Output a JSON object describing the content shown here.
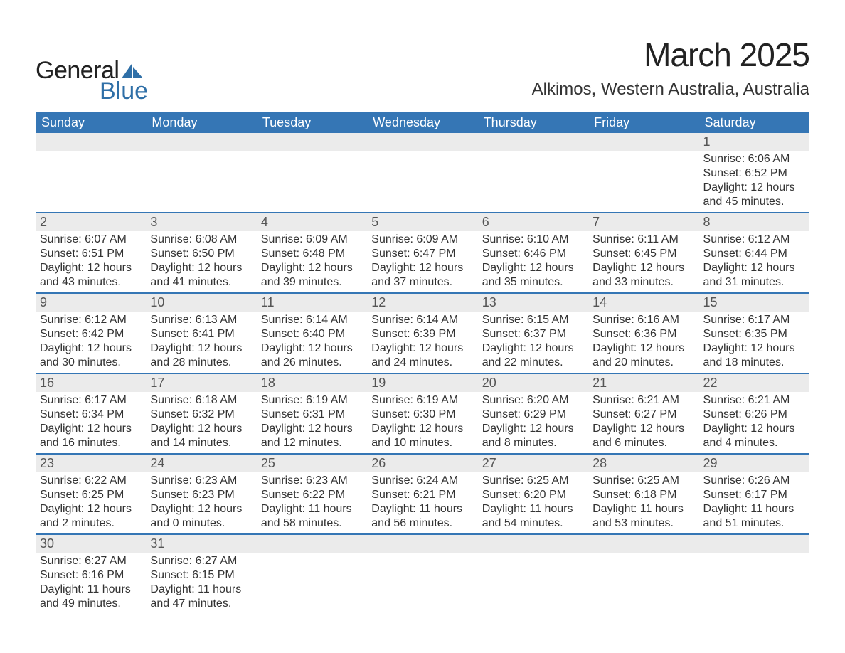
{
  "logo": {
    "word1": "General",
    "word2": "Blue",
    "sail_color": "#2f6fa7",
    "text1_color": "#222222",
    "text2_color": "#2f6fa7"
  },
  "header": {
    "month_title": "March 2025",
    "location": "Alkimos, Western Australia, Australia"
  },
  "colors": {
    "header_bg": "#3576b5",
    "header_text": "#ffffff",
    "daynum_bg": "#ebebeb",
    "row_divider": "#3576b5",
    "body_text": "#333333"
  },
  "typography": {
    "month_title_fontsize": 46,
    "location_fontsize": 24,
    "weekday_fontsize": 18,
    "daynum_fontsize": 18,
    "body_fontsize": 16
  },
  "weekdays": [
    "Sunday",
    "Monday",
    "Tuesday",
    "Wednesday",
    "Thursday",
    "Friday",
    "Saturday"
  ],
  "weeks": [
    [
      null,
      null,
      null,
      null,
      null,
      null,
      {
        "day": "1",
        "sunrise": "Sunrise: 6:06 AM",
        "sunset": "Sunset: 6:52 PM",
        "daylight": "Daylight: 12 hours and 45 minutes."
      }
    ],
    [
      {
        "day": "2",
        "sunrise": "Sunrise: 6:07 AM",
        "sunset": "Sunset: 6:51 PM",
        "daylight": "Daylight: 12 hours and 43 minutes."
      },
      {
        "day": "3",
        "sunrise": "Sunrise: 6:08 AM",
        "sunset": "Sunset: 6:50 PM",
        "daylight": "Daylight: 12 hours and 41 minutes."
      },
      {
        "day": "4",
        "sunrise": "Sunrise: 6:09 AM",
        "sunset": "Sunset: 6:48 PM",
        "daylight": "Daylight: 12 hours and 39 minutes."
      },
      {
        "day": "5",
        "sunrise": "Sunrise: 6:09 AM",
        "sunset": "Sunset: 6:47 PM",
        "daylight": "Daylight: 12 hours and 37 minutes."
      },
      {
        "day": "6",
        "sunrise": "Sunrise: 6:10 AM",
        "sunset": "Sunset: 6:46 PM",
        "daylight": "Daylight: 12 hours and 35 minutes."
      },
      {
        "day": "7",
        "sunrise": "Sunrise: 6:11 AM",
        "sunset": "Sunset: 6:45 PM",
        "daylight": "Daylight: 12 hours and 33 minutes."
      },
      {
        "day": "8",
        "sunrise": "Sunrise: 6:12 AM",
        "sunset": "Sunset: 6:44 PM",
        "daylight": "Daylight: 12 hours and 31 minutes."
      }
    ],
    [
      {
        "day": "9",
        "sunrise": "Sunrise: 6:12 AM",
        "sunset": "Sunset: 6:42 PM",
        "daylight": "Daylight: 12 hours and 30 minutes."
      },
      {
        "day": "10",
        "sunrise": "Sunrise: 6:13 AM",
        "sunset": "Sunset: 6:41 PM",
        "daylight": "Daylight: 12 hours and 28 minutes."
      },
      {
        "day": "11",
        "sunrise": "Sunrise: 6:14 AM",
        "sunset": "Sunset: 6:40 PM",
        "daylight": "Daylight: 12 hours and 26 minutes."
      },
      {
        "day": "12",
        "sunrise": "Sunrise: 6:14 AM",
        "sunset": "Sunset: 6:39 PM",
        "daylight": "Daylight: 12 hours and 24 minutes."
      },
      {
        "day": "13",
        "sunrise": "Sunrise: 6:15 AM",
        "sunset": "Sunset: 6:37 PM",
        "daylight": "Daylight: 12 hours and 22 minutes."
      },
      {
        "day": "14",
        "sunrise": "Sunrise: 6:16 AM",
        "sunset": "Sunset: 6:36 PM",
        "daylight": "Daylight: 12 hours and 20 minutes."
      },
      {
        "day": "15",
        "sunrise": "Sunrise: 6:17 AM",
        "sunset": "Sunset: 6:35 PM",
        "daylight": "Daylight: 12 hours and 18 minutes."
      }
    ],
    [
      {
        "day": "16",
        "sunrise": "Sunrise: 6:17 AM",
        "sunset": "Sunset: 6:34 PM",
        "daylight": "Daylight: 12 hours and 16 minutes."
      },
      {
        "day": "17",
        "sunrise": "Sunrise: 6:18 AM",
        "sunset": "Sunset: 6:32 PM",
        "daylight": "Daylight: 12 hours and 14 minutes."
      },
      {
        "day": "18",
        "sunrise": "Sunrise: 6:19 AM",
        "sunset": "Sunset: 6:31 PM",
        "daylight": "Daylight: 12 hours and 12 minutes."
      },
      {
        "day": "19",
        "sunrise": "Sunrise: 6:19 AM",
        "sunset": "Sunset: 6:30 PM",
        "daylight": "Daylight: 12 hours and 10 minutes."
      },
      {
        "day": "20",
        "sunrise": "Sunrise: 6:20 AM",
        "sunset": "Sunset: 6:29 PM",
        "daylight": "Daylight: 12 hours and 8 minutes."
      },
      {
        "day": "21",
        "sunrise": "Sunrise: 6:21 AM",
        "sunset": "Sunset: 6:27 PM",
        "daylight": "Daylight: 12 hours and 6 minutes."
      },
      {
        "day": "22",
        "sunrise": "Sunrise: 6:21 AM",
        "sunset": "Sunset: 6:26 PM",
        "daylight": "Daylight: 12 hours and 4 minutes."
      }
    ],
    [
      {
        "day": "23",
        "sunrise": "Sunrise: 6:22 AM",
        "sunset": "Sunset: 6:25 PM",
        "daylight": "Daylight: 12 hours and 2 minutes."
      },
      {
        "day": "24",
        "sunrise": "Sunrise: 6:23 AM",
        "sunset": "Sunset: 6:23 PM",
        "daylight": "Daylight: 12 hours and 0 minutes."
      },
      {
        "day": "25",
        "sunrise": "Sunrise: 6:23 AM",
        "sunset": "Sunset: 6:22 PM",
        "daylight": "Daylight: 11 hours and 58 minutes."
      },
      {
        "day": "26",
        "sunrise": "Sunrise: 6:24 AM",
        "sunset": "Sunset: 6:21 PM",
        "daylight": "Daylight: 11 hours and 56 minutes."
      },
      {
        "day": "27",
        "sunrise": "Sunrise: 6:25 AM",
        "sunset": "Sunset: 6:20 PM",
        "daylight": "Daylight: 11 hours and 54 minutes."
      },
      {
        "day": "28",
        "sunrise": "Sunrise: 6:25 AM",
        "sunset": "Sunset: 6:18 PM",
        "daylight": "Daylight: 11 hours and 53 minutes."
      },
      {
        "day": "29",
        "sunrise": "Sunrise: 6:26 AM",
        "sunset": "Sunset: 6:17 PM",
        "daylight": "Daylight: 11 hours and 51 minutes."
      }
    ],
    [
      {
        "day": "30",
        "sunrise": "Sunrise: 6:27 AM",
        "sunset": "Sunset: 6:16 PM",
        "daylight": "Daylight: 11 hours and 49 minutes."
      },
      {
        "day": "31",
        "sunrise": "Sunrise: 6:27 AM",
        "sunset": "Sunset: 6:15 PM",
        "daylight": "Daylight: 11 hours and 47 minutes."
      },
      null,
      null,
      null,
      null,
      null
    ]
  ]
}
